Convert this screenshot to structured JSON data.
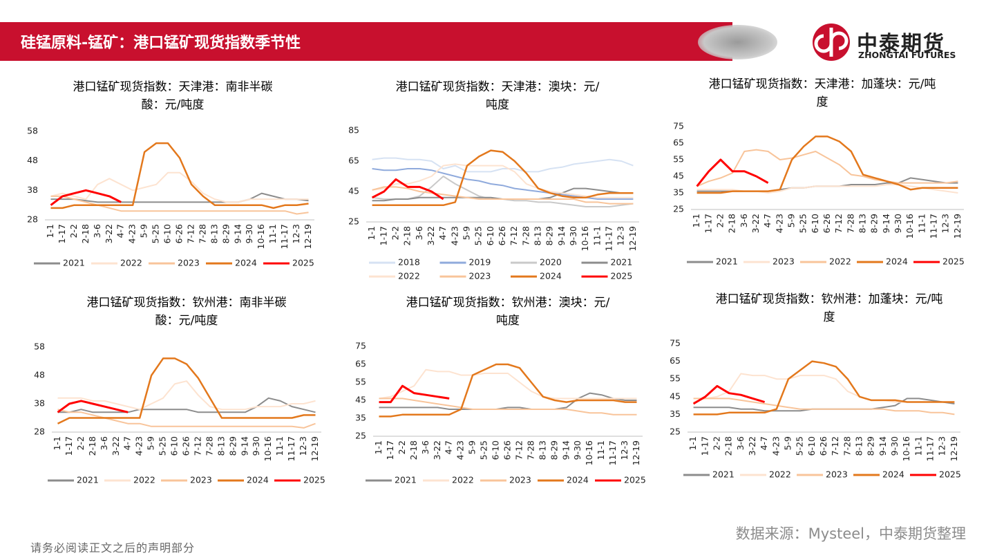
{
  "header": {
    "title": "硅锰原料-锰矿：港口锰矿现货指数季节性"
  },
  "logo": {
    "name": "中泰期货",
    "subtitle": "ZHONGTAI FUTURES"
  },
  "source": "数据来源：Mysteel，中泰期货整理",
  "disclaimer": "请务必阅读正文之后的声明部分",
  "chart_data": [
    {
      "type": "line",
      "title": "港口锰矿现货指数：天津港：南非半碳酸：元/吨度",
      "categories": [
        "1-1",
        "1-17",
        "2-2",
        "2-18",
        "3-6",
        "3-22",
        "4-7",
        "4-23",
        "5-9",
        "5-25",
        "6-10",
        "6-26",
        "7-12",
        "7-28",
        "8-13",
        "8-29",
        "9-14",
        "9-30",
        "10-16",
        "11-1",
        "11-17",
        "12-3",
        "12-19"
      ],
      "ylim": [
        28,
        58
      ],
      "yticks": [
        28,
        38,
        48,
        58
      ],
      "series": [
        {
          "name": "2021",
          "color": "#8c8c8c",
          "values": [
            35,
            35,
            35,
            34.5,
            34,
            34,
            34,
            34,
            34,
            34,
            34,
            34,
            34,
            34,
            34,
            34,
            34,
            35,
            37,
            36,
            35,
            35,
            34.5
          ]
        },
        {
          "name": "2022",
          "color": "#fde3d0",
          "values": [
            36,
            37,
            36,
            35,
            40,
            42,
            40,
            38,
            39,
            40,
            44,
            44,
            41,
            37,
            35,
            34,
            34,
            35,
            35,
            35,
            35,
            35,
            35
          ]
        },
        {
          "name": "2023",
          "color": "#f8c49a",
          "values": [
            36,
            36,
            35,
            34,
            33,
            32,
            31,
            31,
            31,
            31,
            31,
            31,
            31,
            31,
            31,
            31,
            31,
            31,
            31,
            31,
            31,
            30,
            30.5
          ]
        },
        {
          "name": "2024",
          "color": "#e3781c",
          "values": [
            32,
            32,
            33,
            33,
            33,
            33,
            33,
            33,
            51,
            54,
            54,
            49,
            40,
            36,
            33,
            33,
            33,
            33,
            33,
            32,
            33,
            33,
            33.5
          ]
        },
        {
          "name": "2025",
          "color": "#ff0000",
          "values": [
            33,
            36,
            37,
            38,
            37,
            36,
            34,
            null,
            null,
            null,
            null,
            null,
            null,
            null,
            null,
            null,
            null,
            null,
            null,
            null,
            null,
            null,
            null
          ]
        }
      ]
    },
    {
      "type": "line",
      "title": "港口锰矿现货指数：天津港：澳块：元/吨度",
      "categories": [
        "1-1",
        "1-17",
        "2-2",
        "2-18",
        "3-6",
        "3-22",
        "4-7",
        "4-23",
        "5-9",
        "5-25",
        "6-10",
        "6-26",
        "7-12",
        "7-28",
        "8-13",
        "8-29",
        "9-14",
        "9-30",
        "10-16",
        "11-1",
        "11-17",
        "12-3",
        "12-19"
      ],
      "ylim": [
        25,
        85
      ],
      "yticks": [
        25,
        45,
        65,
        85
      ],
      "series": [
        {
          "name": "2018",
          "color": "#d6e2f3",
          "values": [
            66,
            67,
            67,
            66,
            66,
            65,
            60,
            62,
            58,
            58,
            58,
            60,
            60,
            58,
            58,
            60,
            61,
            63,
            64,
            65,
            66,
            65,
            62
          ]
        },
        {
          "name": "2019",
          "color": "#8faadc",
          "values": [
            60,
            59,
            59,
            60,
            60,
            59,
            57,
            55,
            53,
            52,
            50,
            49,
            47,
            46,
            45,
            44,
            43,
            42,
            41,
            40,
            40,
            40,
            40
          ]
        },
        {
          "name": "2020",
          "color": "#c9c9c9",
          "values": [
            41,
            40,
            40,
            40,
            42,
            48,
            55,
            50,
            46,
            42,
            40,
            40,
            39,
            39,
            38,
            38,
            37,
            36,
            35,
            35,
            35,
            36,
            37
          ]
        },
        {
          "name": "2021",
          "color": "#8c8c8c",
          "values": [
            39,
            39,
            40,
            40,
            41,
            41,
            41,
            41,
            41,
            41,
            41,
            40,
            40,
            40,
            40,
            41,
            44,
            47,
            47,
            46,
            45,
            44,
            44
          ]
        },
        {
          "name": "2022",
          "color": "#fde3d0",
          "values": [
            46,
            47,
            50,
            50,
            52,
            55,
            62,
            63,
            62,
            62,
            62,
            62,
            58,
            50,
            47,
            45,
            44,
            43,
            42,
            41,
            41,
            41,
            41
          ]
        },
        {
          "name": "2023",
          "color": "#f8c49a",
          "values": [
            46,
            48,
            48,
            47,
            45,
            44,
            43,
            42,
            41,
            40,
            40,
            40,
            40,
            40,
            40,
            40,
            40,
            40,
            38,
            38,
            37,
            37,
            37
          ]
        },
        {
          "name": "2024",
          "color": "#e3781c",
          "values": [
            36,
            36,
            36,
            36,
            36,
            36,
            36,
            38,
            62,
            68,
            72,
            71,
            65,
            57,
            47,
            44,
            42,
            41,
            41,
            43,
            44,
            44,
            44
          ]
        },
        {
          "name": "2025",
          "color": "#ff0000",
          "values": [
            41,
            45,
            53,
            48,
            48,
            45,
            40,
            null,
            null,
            null,
            null,
            null,
            null,
            null,
            null,
            null,
            null,
            null,
            null,
            null,
            null,
            null,
            null
          ]
        }
      ]
    },
    {
      "type": "line",
      "title": "港口锰矿现货指数：天津港：加蓬块：元/吨度",
      "categories": [
        "1-1",
        "1-17",
        "2-2",
        "2-18",
        "3-6",
        "3-22",
        "4-7",
        "4-23",
        "5-9",
        "5-25",
        "6-10",
        "6-26",
        "7-12",
        "7-28",
        "8-13",
        "8-29",
        "9-14",
        "9-30",
        "10-16",
        "11-1",
        "11-17",
        "12-3",
        "12-19"
      ],
      "ylim": [
        25,
        75
      ],
      "yticks": [
        25,
        35,
        45,
        55,
        65,
        75
      ],
      "series": [
        {
          "name": "2021",
          "color": "#8c8c8c",
          "values": [
            36,
            36,
            36,
            36,
            36,
            36,
            36,
            37,
            38,
            38,
            39,
            39,
            39,
            40,
            40,
            40,
            41,
            41,
            44,
            43,
            42,
            41,
            41
          ]
        },
        {
          "name": "2023",
          "color": "#fde3d0",
          "values": [
            37,
            37,
            37,
            37,
            36,
            36,
            35,
            36,
            38,
            38,
            39,
            39,
            39,
            39,
            39,
            39,
            40,
            40,
            39,
            38,
            37,
            36,
            35
          ]
        },
        {
          "name": "2022",
          "color": "#f8c49a",
          "values": [
            39,
            42,
            44,
            47,
            60,
            61,
            60,
            55,
            56,
            58,
            60,
            56,
            52,
            46,
            45,
            43,
            42,
            41,
            41,
            41,
            41,
            41,
            42
          ]
        },
        {
          "name": "2024",
          "color": "#e3781c",
          "values": [
            35,
            35,
            35,
            36,
            36,
            36,
            36,
            37,
            55,
            63,
            69,
            69,
            66,
            60,
            46,
            44,
            42,
            40,
            37,
            38,
            38,
            38,
            38
          ]
        },
        {
          "name": "2025",
          "color": "#ff0000",
          "values": [
            39,
            48,
            55,
            48,
            48,
            45,
            41,
            null,
            null,
            null,
            null,
            null,
            null,
            null,
            null,
            null,
            null,
            null,
            null,
            null,
            null,
            null,
            null
          ]
        }
      ]
    },
    {
      "type": "line",
      "title": "港口锰矿现货指数：钦州港：南非半碳酸：元/吨度",
      "categories": [
        "1-1",
        "1-17",
        "2-2",
        "2-18",
        "3-6",
        "3-22",
        "4-7",
        "4-23",
        "5-9",
        "5-25",
        "6-10",
        "6-26",
        "7-12",
        "7-28",
        "8-13",
        "8-29",
        "9-14",
        "9-30",
        "10-16",
        "11-1",
        "11-17",
        "12-3",
        "12-19"
      ],
      "ylim": [
        28,
        58
      ],
      "yticks": [
        28,
        38,
        48,
        58
      ],
      "series": [
        {
          "name": "2021",
          "color": "#8c8c8c",
          "values": [
            35,
            35,
            36,
            35,
            35,
            35,
            35,
            36,
            36,
            36,
            36,
            36,
            35,
            35,
            35,
            35,
            35,
            37,
            40,
            39,
            37,
            36,
            35
          ]
        },
        {
          "name": "2022",
          "color": "#fde3d0",
          "values": [
            40,
            40,
            40,
            39,
            39,
            38,
            37,
            36,
            38,
            40,
            45,
            46,
            41,
            37,
            36,
            36,
            36,
            37,
            37,
            37,
            38,
            38,
            39
          ]
        },
        {
          "name": "2023",
          "color": "#f8c49a",
          "values": [
            36,
            35,
            35,
            34,
            33,
            32,
            31,
            31,
            30,
            30,
            30,
            30,
            30,
            30,
            30,
            30,
            30,
            30,
            30,
            30,
            30,
            29.5,
            31
          ]
        },
        {
          "name": "2024",
          "color": "#e3781c",
          "values": [
            31,
            33,
            33,
            33,
            33,
            33,
            33,
            33,
            48,
            54,
            54,
            52,
            47,
            40,
            33,
            33,
            33,
            33,
            33,
            33,
            33,
            34,
            34
          ]
        },
        {
          "name": "2025",
          "color": "#ff0000",
          "values": [
            35,
            38,
            39,
            38,
            37,
            36,
            35,
            null,
            null,
            null,
            null,
            null,
            null,
            null,
            null,
            null,
            null,
            null,
            null,
            null,
            null,
            null,
            null
          ]
        }
      ]
    },
    {
      "type": "line",
      "title": "港口锰矿现货指数：钦州港：澳块：元/吨度",
      "categories": [
        "1-1",
        "1-17",
        "2-2",
        "2-18",
        "3-6",
        "3-22",
        "4-7",
        "4-23",
        "5-9",
        "5-25",
        "6-10",
        "6-26",
        "7-12",
        "7-28",
        "8-13",
        "8-29",
        "9-14",
        "9-30",
        "10-16",
        "11-1",
        "11-17",
        "12-3",
        "12-19"
      ],
      "ylim": [
        25,
        75
      ],
      "yticks": [
        25,
        35,
        45,
        55,
        65,
        75
      ],
      "series": [
        {
          "name": "2021",
          "color": "#8c8c8c",
          "values": [
            41,
            41,
            41,
            41,
            41,
            41,
            40,
            40,
            40,
            40,
            40,
            41,
            41,
            40,
            40,
            40,
            41,
            46,
            49,
            48,
            46,
            45,
            45
          ]
        },
        {
          "name": "2022",
          "color": "#fde3d0",
          "values": [
            46,
            47,
            50,
            53,
            62,
            61,
            61,
            59,
            59,
            60,
            60,
            60,
            55,
            50,
            47,
            46,
            46,
            46,
            46,
            46,
            46,
            46,
            46
          ]
        },
        {
          "name": "2023",
          "color": "#f8c49a",
          "values": [
            46,
            46,
            46,
            45,
            44,
            43,
            42,
            41,
            40,
            40,
            40,
            40,
            40,
            40,
            40,
            40,
            40,
            39,
            38,
            38,
            37,
            37,
            37
          ]
        },
        {
          "name": "2024",
          "color": "#e3781c",
          "values": [
            36,
            36,
            37,
            37,
            37,
            37,
            37,
            40,
            59,
            62,
            65,
            65,
            63,
            55,
            47,
            45,
            44,
            45,
            45,
            45,
            45,
            44,
            44
          ]
        },
        {
          "name": "2025",
          "color": "#ff0000",
          "values": [
            44,
            44,
            53,
            49,
            48,
            47,
            46,
            null,
            null,
            null,
            null,
            null,
            null,
            null,
            null,
            null,
            null,
            null,
            null,
            null,
            null,
            null,
            null
          ]
        }
      ]
    },
    {
      "type": "line",
      "title": "港口锰矿现货指数：钦州港：加蓬块：元/吨度",
      "categories": [
        "1-1",
        "1-17",
        "2-2",
        "2-18",
        "3-6",
        "3-22",
        "4-7",
        "4-23",
        "5-9",
        "5-25",
        "6-10",
        "6-26",
        "7-12",
        "7-28",
        "8-13",
        "8-29",
        "9-14",
        "9-30",
        "10-16",
        "11-1",
        "11-17",
        "12-3",
        "12-19"
      ],
      "ylim": [
        25,
        75
      ],
      "yticks": [
        25,
        35,
        45,
        55,
        65,
        75
      ],
      "series": [
        {
          "name": "2021",
          "color": "#8c8c8c",
          "values": [
            39,
            39,
            39,
            39,
            38,
            38,
            37,
            37,
            37,
            37,
            38,
            38,
            38,
            38,
            38,
            38,
            39,
            40,
            44,
            44,
            43,
            42,
            41
          ]
        },
        {
          "name": "2022",
          "color": "#fde3d0",
          "values": [
            42,
            44,
            45,
            48,
            58,
            57,
            57,
            55,
            55,
            57,
            57,
            57,
            55,
            48,
            45,
            43,
            43,
            42,
            42,
            42,
            42,
            42,
            42
          ]
        },
        {
          "name": "2023",
          "color": "#f8c49a",
          "values": [
            44,
            44,
            44,
            44,
            43,
            42,
            41,
            40,
            39,
            38,
            38,
            38,
            38,
            38,
            38,
            38,
            38,
            37,
            37,
            37,
            36,
            36,
            35
          ]
        },
        {
          "name": "2024",
          "color": "#e3781c",
          "values": [
            35,
            35,
            35,
            36,
            36,
            36,
            36,
            38,
            55,
            60,
            65,
            64,
            62,
            55,
            45,
            43,
            43,
            43,
            42,
            42,
            42,
            42,
            42
          ]
        },
        {
          "name": "2025",
          "color": "#ff0000",
          "values": [
            41,
            45,
            51,
            47,
            46,
            44,
            42,
            null,
            null,
            null,
            null,
            null,
            null,
            null,
            null,
            null,
            null,
            null,
            null,
            null,
            null,
            null,
            null
          ]
        }
      ]
    }
  ]
}
